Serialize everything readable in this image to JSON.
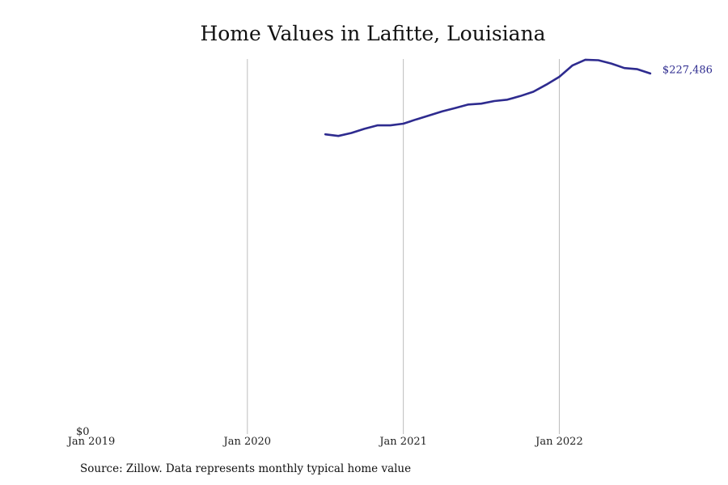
{
  "chart_data": {
    "type": "line",
    "title": "Home Values in Lafitte, Louisiana",
    "source": "Source: Zillow. Data represents monthly typical home value",
    "xlabel": "",
    "ylabel": "",
    "x_ticks": [
      "Jan 2019",
      "Jan 2020",
      "Jan 2021",
      "Jan 2022"
    ],
    "y_ticks": [
      "$0"
    ],
    "xlim": [
      "2019-01",
      "2022-09"
    ],
    "ylim": [
      0,
      251000
    ],
    "grid": "vertical",
    "line_color": "#2e2b8f",
    "end_label": "$227,486",
    "series": [
      {
        "x": [
          "2020-07",
          "2020-08",
          "2020-09",
          "2020-10",
          "2020-11",
          "2020-12",
          "2021-01",
          "2021-02",
          "2021-03",
          "2021-04",
          "2021-05",
          "2021-06",
          "2021-07",
          "2021-08",
          "2021-09",
          "2021-10",
          "2021-11",
          "2021-12",
          "2022-01",
          "2022-02",
          "2022-03",
          "2022-04",
          "2022-05",
          "2022-06",
          "2022-07",
          "2022-08"
        ],
        "values": [
          188900,
          187900,
          189800,
          192400,
          194600,
          194600,
          195700,
          198400,
          200900,
          203500,
          205600,
          207800,
          208400,
          210000,
          210900,
          213200,
          215900,
          220400,
          225400,
          232500,
          236200,
          235900,
          233800,
          230900,
          230200,
          227486
        ]
      }
    ]
  }
}
